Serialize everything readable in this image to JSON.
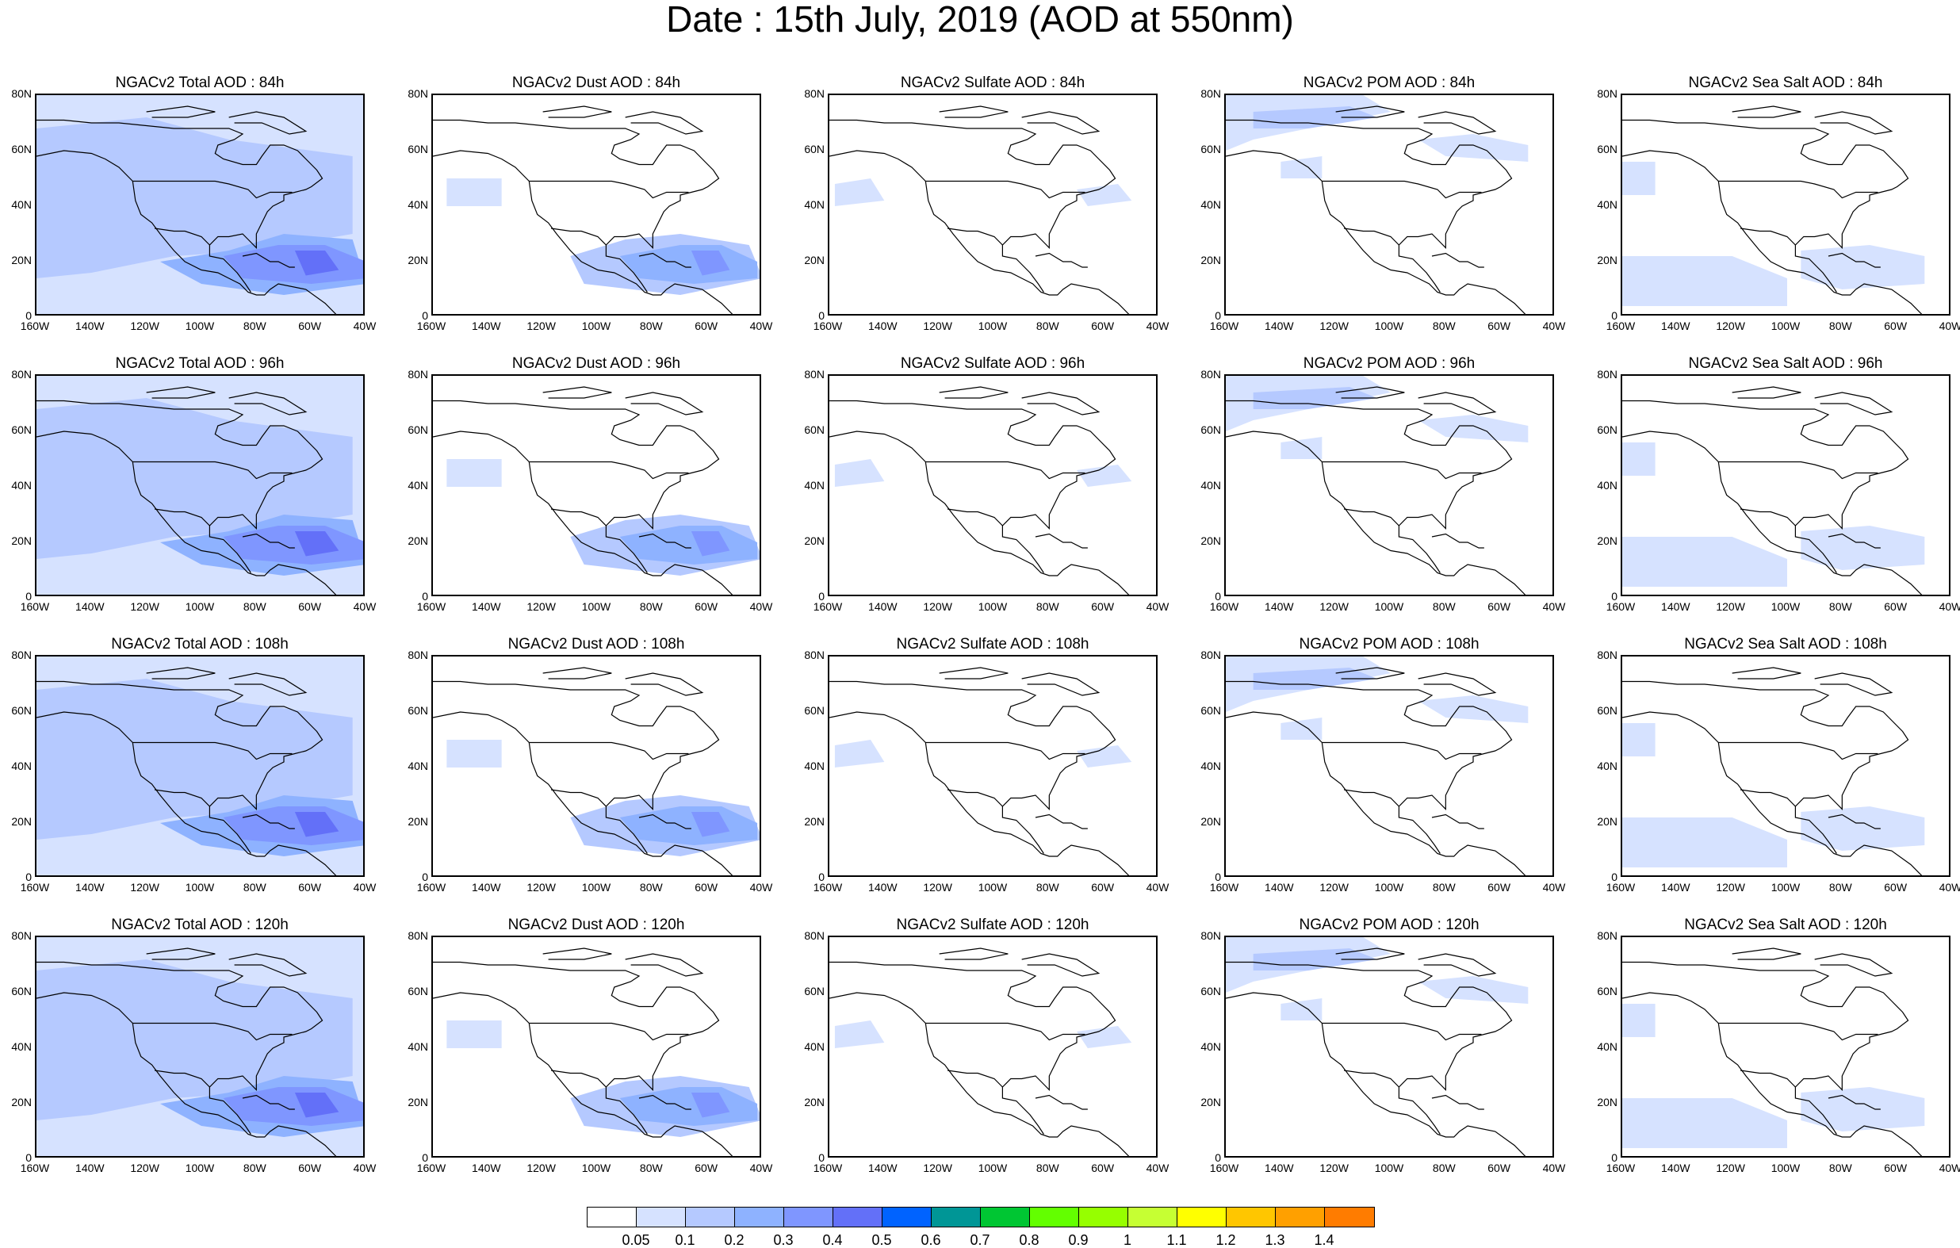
{
  "title": "Date : 15th July, 2019 (AOD at 550nm)",
  "lat_labels": [
    "80N",
    "60N",
    "40N",
    "20N",
    "0"
  ],
  "lon_labels": [
    "160W",
    "140W",
    "120W",
    "100W",
    "80W",
    "60W",
    "40W"
  ],
  "rows": [
    [
      "NGACv2 Total AOD : 84h",
      "NGACv2 Dust AOD : 84h",
      "NGACv2 Sulfate AOD : 84h",
      "NGACv2 POM AOD : 84h",
      "NGACv2 Sea Salt AOD : 84h"
    ],
    [
      "NGACv2 Total AOD : 96h",
      "NGACv2 Dust AOD : 96h",
      "NGACv2 Sulfate AOD : 96h",
      "NGACv2 POM AOD : 96h",
      "NGACv2 Sea Salt AOD : 96h"
    ],
    [
      "NGACv2 Total AOD : 108h",
      "NGACv2 Dust AOD : 108h",
      "NGACv2 Sulfate AOD : 108h",
      "NGACv2 POM AOD : 108h",
      "NGACv2 Sea Salt AOD : 108h"
    ],
    [
      "NGACv2 Total AOD : 120h",
      "NGACv2 Dust AOD : 120h",
      "NGACv2 Sulfate AOD : 120h",
      "NGACv2 POM AOD : 120h",
      "NGACv2 Sea Salt  AOD : 120h"
    ]
  ],
  "colorbar": {
    "labels": [
      "0.05",
      "0.1",
      "0.2",
      "0.3",
      "0.4",
      "0.5",
      "0.6",
      "0.7",
      "0.8",
      "0.9",
      "1",
      "1.1",
      "1.2",
      "1.3",
      "1.4"
    ],
    "colors": [
      "#ffffff",
      "#d6e2ff",
      "#b5c9ff",
      "#8eb2ff",
      "#7f96ff",
      "#6370f8",
      "#0063ff",
      "#009696",
      "#00c633",
      "#63ff00",
      "#96ff00",
      "#c6ff33",
      "#ffff00",
      "#ffc600",
      "#ffa000",
      "#ff7c00",
      "#ff1900"
    ]
  }
}
